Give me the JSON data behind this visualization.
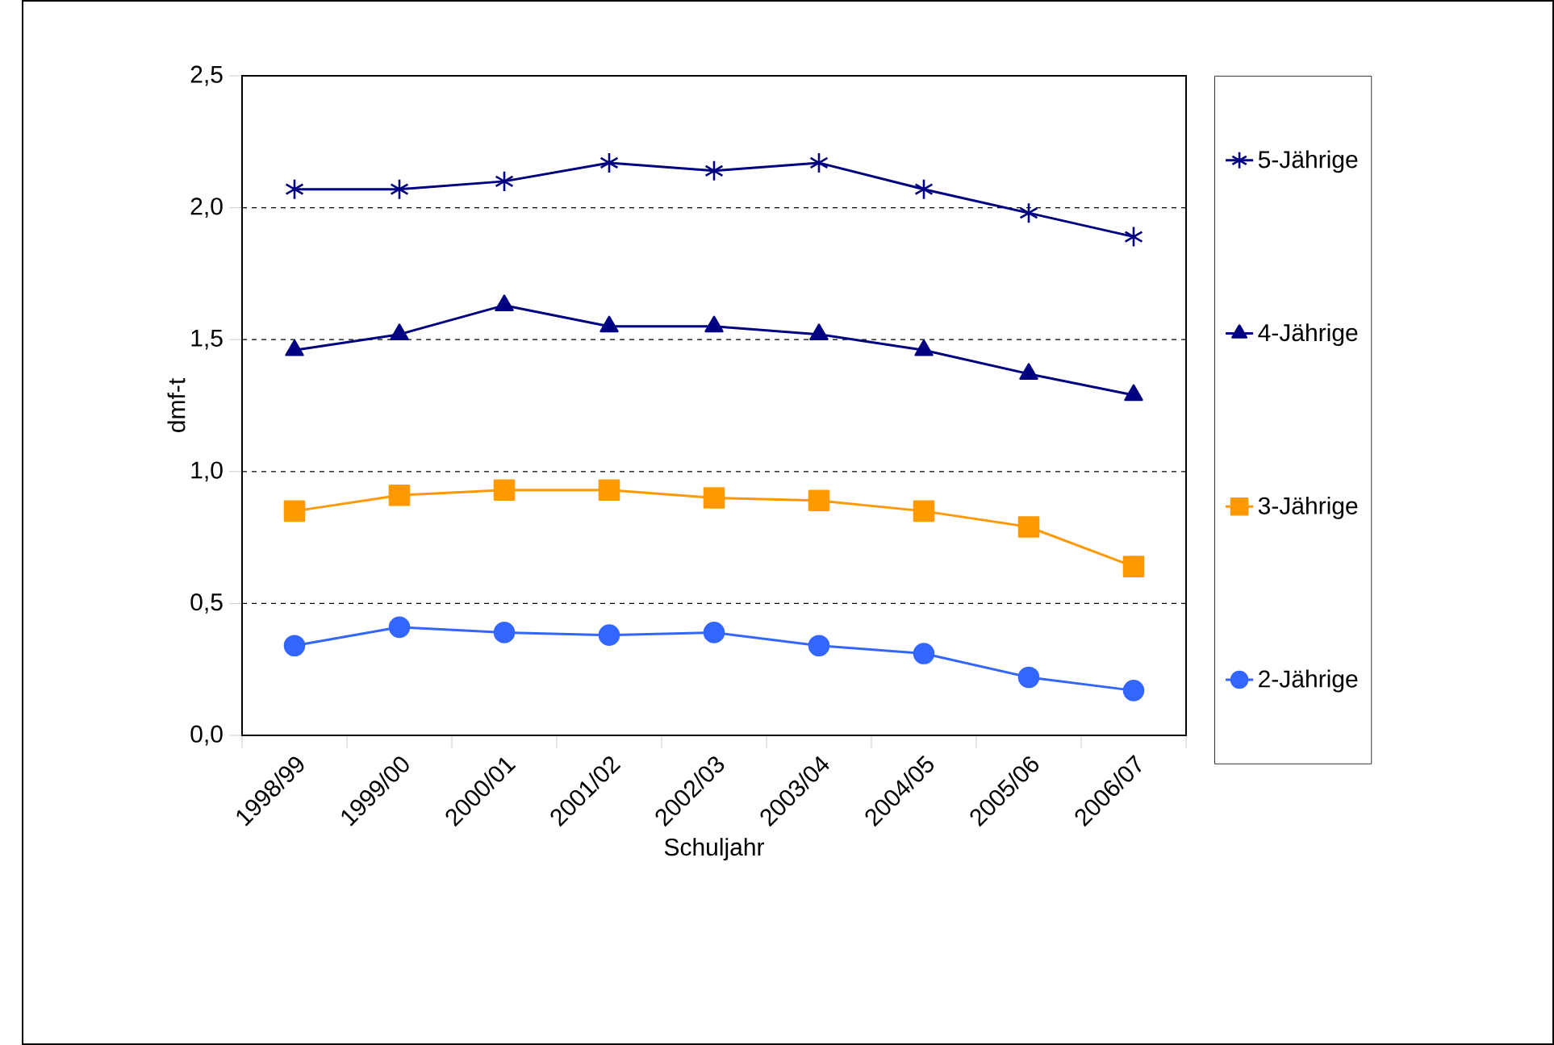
{
  "chart_data": {
    "type": "line",
    "xlabel": "Schuljahr",
    "ylabel": "dmf-t",
    "categories": [
      "1998/99",
      "1999/00",
      "2000/01",
      "2001/02",
      "2002/03",
      "2003/04",
      "2004/05",
      "2005/06",
      "2006/07"
    ],
    "series": [
      {
        "name": "5-Jährige",
        "color": "#000080",
        "marker": "cross",
        "values": [
          2.07,
          2.07,
          2.1,
          2.17,
          2.14,
          2.17,
          2.07,
          1.98,
          1.89
        ]
      },
      {
        "name": "4-Jährige",
        "color": "#000080",
        "marker": "triangle",
        "values": [
          1.46,
          1.52,
          1.63,
          1.55,
          1.55,
          1.52,
          1.46,
          1.37,
          1.29
        ]
      },
      {
        "name": "3-Jährige",
        "color": "#ff9900",
        "marker": "square",
        "values": [
          0.85,
          0.91,
          0.93,
          0.93,
          0.9,
          0.89,
          0.85,
          0.79,
          0.64
        ]
      },
      {
        "name": "2-Jährige",
        "color": "#3366ff",
        "marker": "circle",
        "values": [
          0.34,
          0.41,
          0.39,
          0.38,
          0.39,
          0.34,
          0.31,
          0.22,
          0.17
        ]
      }
    ],
    "ylim": [
      0,
      2.5
    ],
    "yticks": [
      {
        "value": 0,
        "label": "0,0"
      },
      {
        "value": 0.5,
        "label": "0,5"
      },
      {
        "value": 1,
        "label": "1,0"
      },
      {
        "value": 1.5,
        "label": "1,5"
      },
      {
        "value": 2,
        "label": "2,0"
      },
      {
        "value": 2.5,
        "label": "2,5"
      }
    ],
    "grid": "y",
    "legend": "right"
  }
}
